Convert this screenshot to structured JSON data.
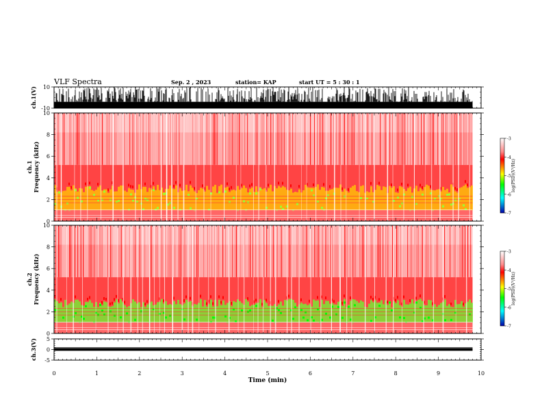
{
  "header": {
    "title": "VLF Spectra",
    "date": "Sep. 2 , 2023",
    "station": "station= KAP",
    "start": "start UT =  5 : 30 : 1"
  },
  "chart_data": [
    {
      "type": "line",
      "name": "ch1-waveform",
      "ylabel": "ch.1(V)",
      "ylim": [
        -10,
        10
      ],
      "yticks": [
        "10",
        "-10"
      ],
      "xlim": [
        0,
        10
      ]
    },
    {
      "type": "heatmap",
      "name": "ch1-spectrogram",
      "ylabel": "ch.1\nFrequency (kHz)",
      "ylim": [
        0,
        10
      ],
      "yticks": [
        "0",
        "2",
        "4",
        "6",
        "8",
        "10"
      ],
      "xlim": [
        0,
        10
      ],
      "data_end_min": 9.8,
      "colorbar": {
        "label": "log(PSD)(V²/Hz)",
        "range": [
          -7,
          -3
        ],
        "ticks": [
          "-3",
          "-4",
          "-5",
          "-6",
          "-7"
        ]
      }
    },
    {
      "type": "heatmap",
      "name": "ch2-spectrogram",
      "ylabel": "ch.2\nFrequency (kHz)",
      "ylim": [
        0,
        10
      ],
      "yticks": [
        "0",
        "2",
        "4",
        "6",
        "8",
        "10"
      ],
      "xlim": [
        0,
        10
      ],
      "data_end_min": 9.8,
      "colorbar": {
        "label": "log(PSD)(V²/Hz)",
        "range": [
          -7,
          -3
        ],
        "ticks": [
          "-3",
          "-4",
          "-5",
          "-6",
          "-7"
        ]
      }
    },
    {
      "type": "line",
      "name": "ch3-waveform",
      "ylabel": "ch.3(V)",
      "ylim": [
        -5,
        5
      ],
      "yticks": [
        "5",
        "0",
        "-5"
      ],
      "xlim": [
        0,
        10
      ],
      "xlabel": "Time (min)",
      "xticks": [
        "0",
        "1",
        "2",
        "3",
        "4",
        "5",
        "6",
        "7",
        "8",
        "9",
        "10"
      ]
    }
  ],
  "colors": {
    "waveform": "#000000",
    "psd_high": "#ff0000",
    "psd_mid": "#ffff00",
    "psd_low": "#00ff00",
    "psd_min": "#0000ff"
  }
}
